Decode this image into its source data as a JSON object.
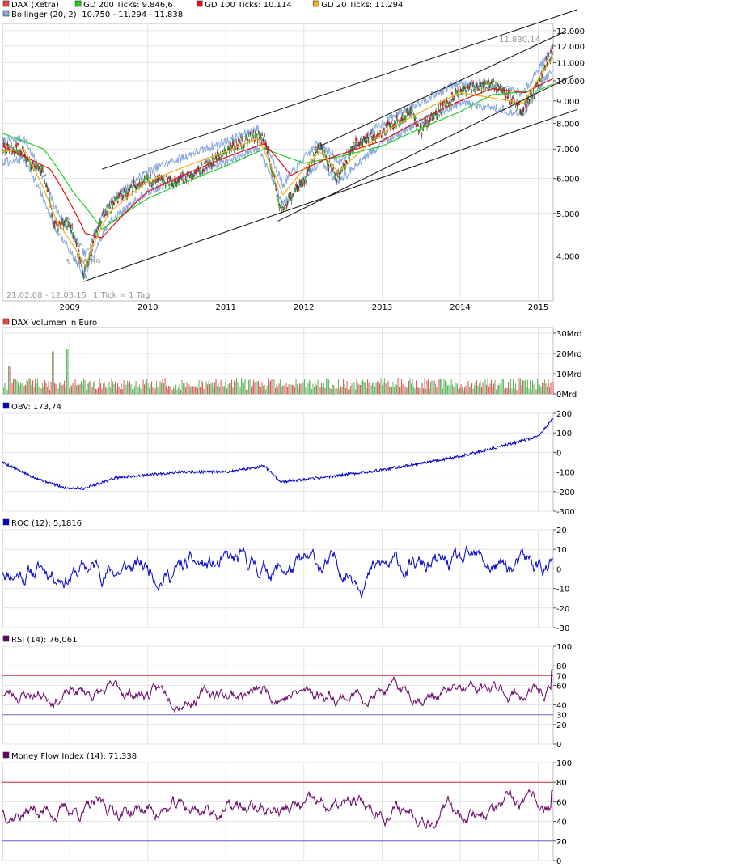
{
  "chart_data": [
    {
      "panel": "price",
      "type": "line",
      "scale": "log",
      "ylim": [
        3300,
        13500
      ],
      "y_ticks": [
        "13.000",
        "12.000",
        "11.000",
        "10.000",
        "9.000",
        "8.000",
        "7.000",
        "6.000",
        "5.000",
        "4.000"
      ],
      "x_ticks": [
        "2009",
        "2010",
        "2011",
        "2012",
        "2013",
        "2014",
        "2015"
      ],
      "grid": true,
      "legend": [
        {
          "label": "DAX (Xetra)",
          "color": "#e8443a"
        },
        {
          "label": "GD 200 Ticks: 9.846,6",
          "color": "#22cc22"
        },
        {
          "label": "GD 100 Ticks: 10.114",
          "color": "#dd1111"
        },
        {
          "label": "GD 20 Ticks: 11.294",
          "color": "#f0b020"
        },
        {
          "label": "Bollinger (20, 2): 10.750 - 11.294 - 11.838",
          "color": "#88aadd"
        }
      ],
      "annotations": {
        "high": "11.830,14",
        "low": "3.588,89",
        "range": "21.02.08 - 12.03.15",
        "tick_note": "1 Tick = 1 Tag"
      },
      "close": [
        {
          "x": "2008-02-21",
          "y": 7000
        },
        {
          "x": "2008-05-01",
          "y": 7000
        },
        {
          "x": "2008-07-01",
          "y": 6500
        },
        {
          "x": "2008-09-01",
          "y": 6200
        },
        {
          "x": "2008-10-20",
          "y": 4700
        },
        {
          "x": "2008-12-31",
          "y": 4800
        },
        {
          "x": "2009-03-06",
          "y": 3589
        },
        {
          "x": "2009-06-01",
          "y": 4900
        },
        {
          "x": "2009-09-01",
          "y": 5500
        },
        {
          "x": "2009-12-31",
          "y": 6000
        },
        {
          "x": "2010-05-01",
          "y": 5900
        },
        {
          "x": "2010-08-01",
          "y": 6100
        },
        {
          "x": "2010-12-31",
          "y": 6900
        },
        {
          "x": "2011-05-02",
          "y": 7500
        },
        {
          "x": "2011-07-01",
          "y": 7300
        },
        {
          "x": "2011-09-12",
          "y": 5100
        },
        {
          "x": "2011-12-31",
          "y": 5900
        },
        {
          "x": "2012-03-15",
          "y": 7100
        },
        {
          "x": "2012-06-04",
          "y": 6000
        },
        {
          "x": "2012-09-01",
          "y": 7200
        },
        {
          "x": "2012-12-31",
          "y": 7600
        },
        {
          "x": "2013-05-20",
          "y": 8500
        },
        {
          "x": "2013-06-25",
          "y": 7700
        },
        {
          "x": "2013-12-31",
          "y": 9500
        },
        {
          "x": "2014-06-01",
          "y": 9900
        },
        {
          "x": "2014-10-16",
          "y": 8570
        },
        {
          "x": "2014-12-31",
          "y": 9800
        },
        {
          "x": "2015-03-12",
          "y": 11830
        }
      ],
      "gd200": [
        {
          "x": "2008-02-21",
          "y": 7600
        },
        {
          "x": "2008-09-01",
          "y": 7000
        },
        {
          "x": "2009-01-15",
          "y": 5600
        },
        {
          "x": "2009-06-01",
          "y": 4600
        },
        {
          "x": "2009-12-31",
          "y": 5400
        },
        {
          "x": "2010-12-31",
          "y": 6400
        },
        {
          "x": "2011-07-01",
          "y": 7000
        },
        {
          "x": "2011-12-31",
          "y": 6500
        },
        {
          "x": "2012-06-01",
          "y": 6700
        },
        {
          "x": "2012-12-31",
          "y": 7100
        },
        {
          "x": "2013-12-31",
          "y": 8500
        },
        {
          "x": "2014-06-01",
          "y": 9300
        },
        {
          "x": "2014-12-31",
          "y": 9500
        },
        {
          "x": "2015-03-12",
          "y": 9847
        }
      ],
      "gd100": [
        {
          "x": "2008-02-21",
          "y": 7100
        },
        {
          "x": "2008-10-01",
          "y": 6300
        },
        {
          "x": "2009-03-15",
          "y": 4500
        },
        {
          "x": "2009-06-01",
          "y": 4400
        },
        {
          "x": "2009-12-31",
          "y": 5600
        },
        {
          "x": "2010-12-31",
          "y": 6700
        },
        {
          "x": "2011-07-01",
          "y": 7200
        },
        {
          "x": "2011-11-01",
          "y": 6100
        },
        {
          "x": "2012-04-01",
          "y": 6600
        },
        {
          "x": "2012-12-31",
          "y": 7300
        },
        {
          "x": "2013-12-31",
          "y": 9000
        },
        {
          "x": "2014-06-01",
          "y": 9600
        },
        {
          "x": "2014-11-01",
          "y": 9400
        },
        {
          "x": "2015-03-12",
          "y": 10114
        }
      ],
      "gd20": [
        {
          "x": "2008-02-21",
          "y": 6900
        },
        {
          "x": "2008-06-01",
          "y": 7000
        },
        {
          "x": "2008-11-01",
          "y": 4800
        },
        {
          "x": "2009-03-15",
          "y": 3800
        },
        {
          "x": "2009-07-01",
          "y": 5000
        },
        {
          "x": "2009-12-31",
          "y": 5900
        },
        {
          "x": "2010-12-31",
          "y": 6900
        },
        {
          "x": "2011-06-01",
          "y": 7400
        },
        {
          "x": "2011-09-25",
          "y": 5500
        },
        {
          "x": "2012-03-15",
          "y": 6900
        },
        {
          "x": "2012-06-10",
          "y": 6200
        },
        {
          "x": "2012-12-31",
          "y": 7600
        },
        {
          "x": "2013-12-31",
          "y": 9400
        },
        {
          "x": "2014-10-25",
          "y": 8900
        },
        {
          "x": "2015-03-12",
          "y": 11294
        }
      ],
      "trendlines": [
        {
          "from": {
            "x": "2009-06-01",
            "y": 6300
          },
          "to": {
            "x": "2015-06-30",
            "y": 14500
          }
        },
        {
          "from": {
            "x": "2009-03-06",
            "y": 3500
          },
          "to": {
            "x": "2015-06-30",
            "y": 8600
          }
        },
        {
          "from": {
            "x": "2011-09-01",
            "y": 4800
          },
          "to": {
            "x": "2015-06-15",
            "y": 10300
          }
        },
        {
          "from": {
            "x": "2012-03-01",
            "y": 7050
          },
          "to": {
            "x": "2015-05-01",
            "y": 12900
          }
        }
      ]
    },
    {
      "panel": "volume",
      "type": "bar",
      "legend": [
        {
          "label": "DAX Volumen in Euro",
          "color": "#e8443a"
        }
      ],
      "y_ticks": [
        "30Mrd",
        "20Mrd",
        "10Mrd",
        "0Mrd"
      ],
      "ylim": [
        0,
        30
      ],
      "typical_range_mrd": [
        2,
        8
      ],
      "spikes_mrd": [
        {
          "x": "2008-03-20",
          "y": 14
        },
        {
          "x": "2008-10-10",
          "y": 21
        },
        {
          "x": "2008-12-19",
          "y": 22
        }
      ]
    },
    {
      "panel": "obv",
      "type": "line",
      "legend": [
        {
          "label": "OBV: 173,74",
          "color": "#0000cc"
        }
      ],
      "y_ticks": [
        "200",
        "100",
        "0",
        "-100",
        "-200",
        "-300"
      ],
      "ylim": [
        -300,
        200
      ],
      "series": [
        {
          "x": "2008-02-21",
          "y": -50
        },
        {
          "x": "2008-07-01",
          "y": -120
        },
        {
          "x": "2008-12-01",
          "y": -180
        },
        {
          "x": "2009-03-06",
          "y": -185
        },
        {
          "x": "2009-08-01",
          "y": -130
        },
        {
          "x": "2010-06-01",
          "y": -100
        },
        {
          "x": "2010-12-31",
          "y": -100
        },
        {
          "x": "2011-07-01",
          "y": -70
        },
        {
          "x": "2011-09-15",
          "y": -150
        },
        {
          "x": "2012-01-01",
          "y": -140
        },
        {
          "x": "2012-12-31",
          "y": -90
        },
        {
          "x": "2013-12-31",
          "y": -20
        },
        {
          "x": "2014-06-01",
          "y": 20
        },
        {
          "x": "2014-12-31",
          "y": 80
        },
        {
          "x": "2015-03-12",
          "y": 174
        }
      ]
    },
    {
      "panel": "roc",
      "type": "line",
      "legend": [
        {
          "label": "ROC (12): 5,1816",
          "color": "#0000cc"
        }
      ],
      "y_ticks": [
        "20",
        "10",
        "0",
        "-10",
        "-20",
        "-30"
      ],
      "ylim": [
        -30,
        20
      ],
      "final": 5.18
    },
    {
      "panel": "rsi",
      "type": "line",
      "legend": [
        {
          "label": "RSI (14): 76,061",
          "color": "#660066"
        }
      ],
      "y_ticks": [
        "100",
        "80",
        "60",
        "40",
        "20",
        "0"
      ],
      "levels": [
        {
          "label": "70",
          "value": 70,
          "color": "#cc3333"
        },
        {
          "label": "30",
          "value": 30,
          "color": "#6666cc"
        }
      ],
      "ylim": [
        0,
        100
      ],
      "final": 76.06
    },
    {
      "panel": "mfi",
      "type": "line",
      "legend": [
        {
          "label": "Money Flow Index (14): 71,338",
          "color": "#660066"
        }
      ],
      "y_ticks": [
        "100",
        "80",
        "60",
        "40",
        "20",
        "0"
      ],
      "levels": [
        {
          "label": "80",
          "value": 80,
          "color": "#cc3333"
        },
        {
          "label": "20",
          "value": 20,
          "color": "#6666cc"
        }
      ],
      "ylim": [
        0,
        100
      ],
      "final": 71.34
    }
  ]
}
